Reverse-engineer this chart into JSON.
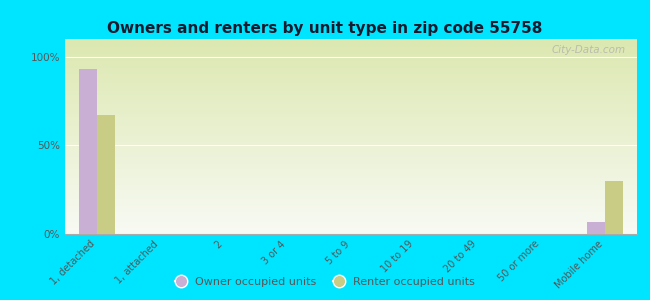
{
  "title": "Owners and renters by unit type in zip code 55758",
  "categories": [
    "1, detached",
    "1, attached",
    "2",
    "3 or 4",
    "5 to 9",
    "10 to 19",
    "20 to 49",
    "50 or more",
    "Mobile home"
  ],
  "owner_values": [
    93,
    0,
    0,
    0,
    0,
    0,
    0,
    0,
    7
  ],
  "renter_values": [
    67,
    0,
    0,
    0,
    0,
    0,
    0,
    0,
    30
  ],
  "owner_color": "#c9afd4",
  "renter_color": "#c8cc84",
  "bg_color": "#00e5ff",
  "plot_bg_grad_top": "#dce8b0",
  "plot_bg_grad_bottom": "#f8faf4",
  "yticks": [
    0,
    50,
    100
  ],
  "ylim": [
    0,
    110
  ],
  "ylabel_labels": [
    "0%",
    "50%",
    "100%"
  ],
  "watermark": "City-Data.com",
  "legend_owner": "Owner occupied units",
  "legend_renter": "Renter occupied units",
  "bar_width": 0.28
}
